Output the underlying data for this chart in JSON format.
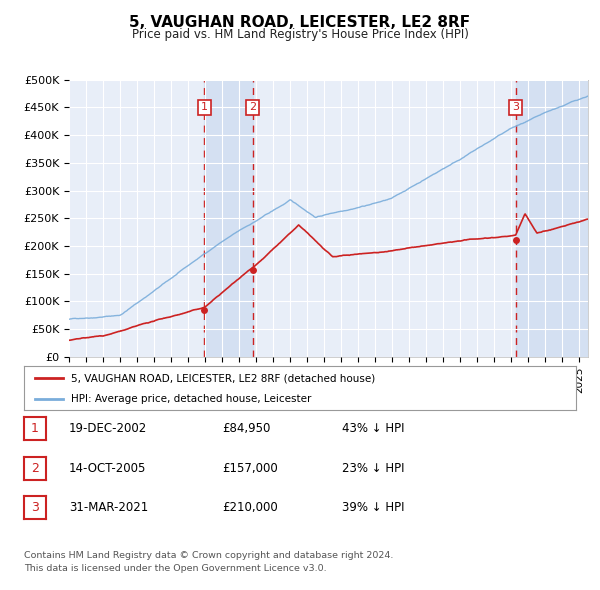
{
  "title": "5, VAUGHAN ROAD, LEICESTER, LE2 8RF",
  "subtitle": "Price paid vs. HM Land Registry's House Price Index (HPI)",
  "ylabel_ticks": [
    "£0",
    "£50K",
    "£100K",
    "£150K",
    "£200K",
    "£250K",
    "£300K",
    "£350K",
    "£400K",
    "£450K",
    "£500K"
  ],
  "ytick_values": [
    0,
    50000,
    100000,
    150000,
    200000,
    250000,
    300000,
    350000,
    400000,
    450000,
    500000
  ],
  "ylim": [
    0,
    500000
  ],
  "xlim_start": 1995.0,
  "xlim_end": 2025.5,
  "sale_dates": [
    2002.96,
    2005.79,
    2021.25
  ],
  "sale_prices": [
    84950,
    157000,
    210000
  ],
  "sale_labels": [
    "1",
    "2",
    "3"
  ],
  "sale_date_strs": [
    "19-DEC-2002",
    "14-OCT-2005",
    "31-MAR-2021"
  ],
  "sale_price_strs": [
    "£84,950",
    "£157,000",
    "£210,000"
  ],
  "sale_hpi_strs": [
    "43% ↓ HPI",
    "23% ↓ HPI",
    "39% ↓ HPI"
  ],
  "hpi_line_color": "#7aaddb",
  "price_line_color": "#cc2222",
  "dashed_line_color": "#cc2222",
  "background_color": "#ffffff",
  "plot_bg_color": "#e8eef8",
  "shade_color": "#c8d8ee",
  "legend_line1": "5, VAUGHAN ROAD, LEICESTER, LE2 8RF (detached house)",
  "legend_line2": "HPI: Average price, detached house, Leicester",
  "footnote1": "Contains HM Land Registry data © Crown copyright and database right 2024.",
  "footnote2": "This data is licensed under the Open Government Licence v3.0."
}
